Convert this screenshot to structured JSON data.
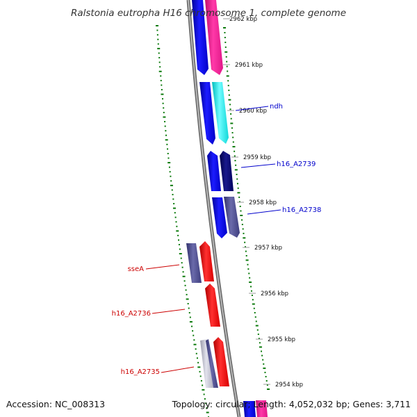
{
  "title": "Ralstonia eutropha H16 chromosome 1, complete genome",
  "footer": {
    "accession": "Accession: NC_008313",
    "summary": "Topology: circular; Length: 4,052,032 bp; Genes: 3,711"
  },
  "ticks": [
    {
      "label": "2962 kbp",
      "partial": true
    },
    {
      "label": "2961 kbp"
    },
    {
      "label": "2960 kbp"
    },
    {
      "label": "2959 kbp"
    },
    {
      "label": "2958 kbp"
    },
    {
      "label": "2957 kbp"
    },
    {
      "label": "2956 kbp"
    },
    {
      "label": "2955 kbp"
    },
    {
      "label": "2954 kbp"
    }
  ],
  "gene_labels": [
    {
      "name": "ndh",
      "color": "#0000cc"
    },
    {
      "name": "h16_A2739",
      "color": "#0000cc"
    },
    {
      "name": "h16_A2738",
      "color": "#0000cc"
    },
    {
      "name": "sseA",
      "color": "#cc0000"
    },
    {
      "name": "h16_A2736",
      "color": "#cc0000"
    },
    {
      "name": "h16_A2735",
      "color": "#cc0000"
    }
  ],
  "colors": {
    "cds": "#0000ff",
    "cds_pink": "#ff1493",
    "cds_cyan": "#00ffff",
    "cds_navy": "#000077",
    "cds_slate": "#4b4b8f",
    "cds_red": "#ff0000",
    "cds_gray": "#b8b8c8",
    "gc_skew": "#0b7a0b",
    "backbone": "#8c8c8c"
  }
}
